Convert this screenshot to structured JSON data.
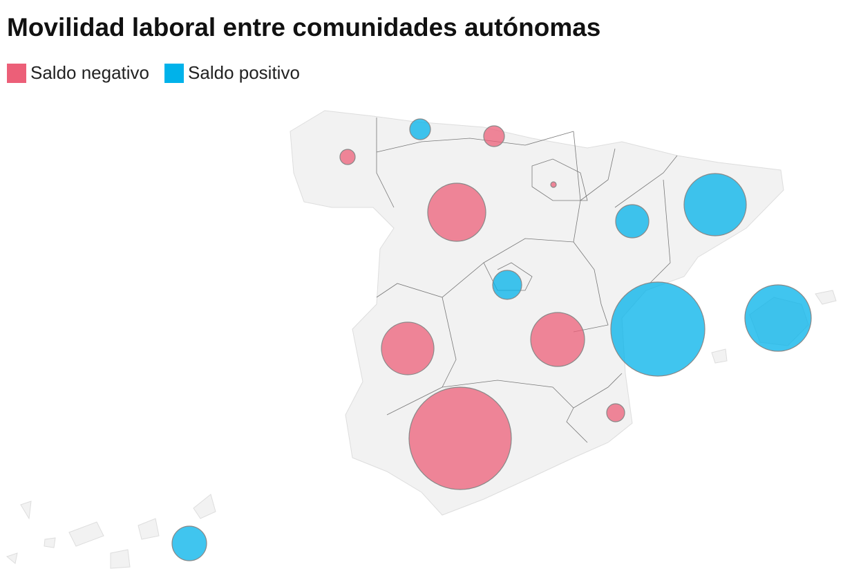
{
  "chart_data": {
    "type": "bubble-map",
    "title": "Movilidad laboral entre comunidades autónomas",
    "series": [
      {
        "name": "Saldo negativo",
        "color": "#ec5f78",
        "values": [
          -121,
          -225,
          -16,
          -1764,
          -1444,
          -1521,
          -169,
          -5476
        ]
      },
      {
        "name": "Saldo positivo",
        "color": "#00b2ea",
        "values": [
          225,
          576,
          2025,
          441,
          4624,
          2304,
          625
        ]
      }
    ]
  }
}
